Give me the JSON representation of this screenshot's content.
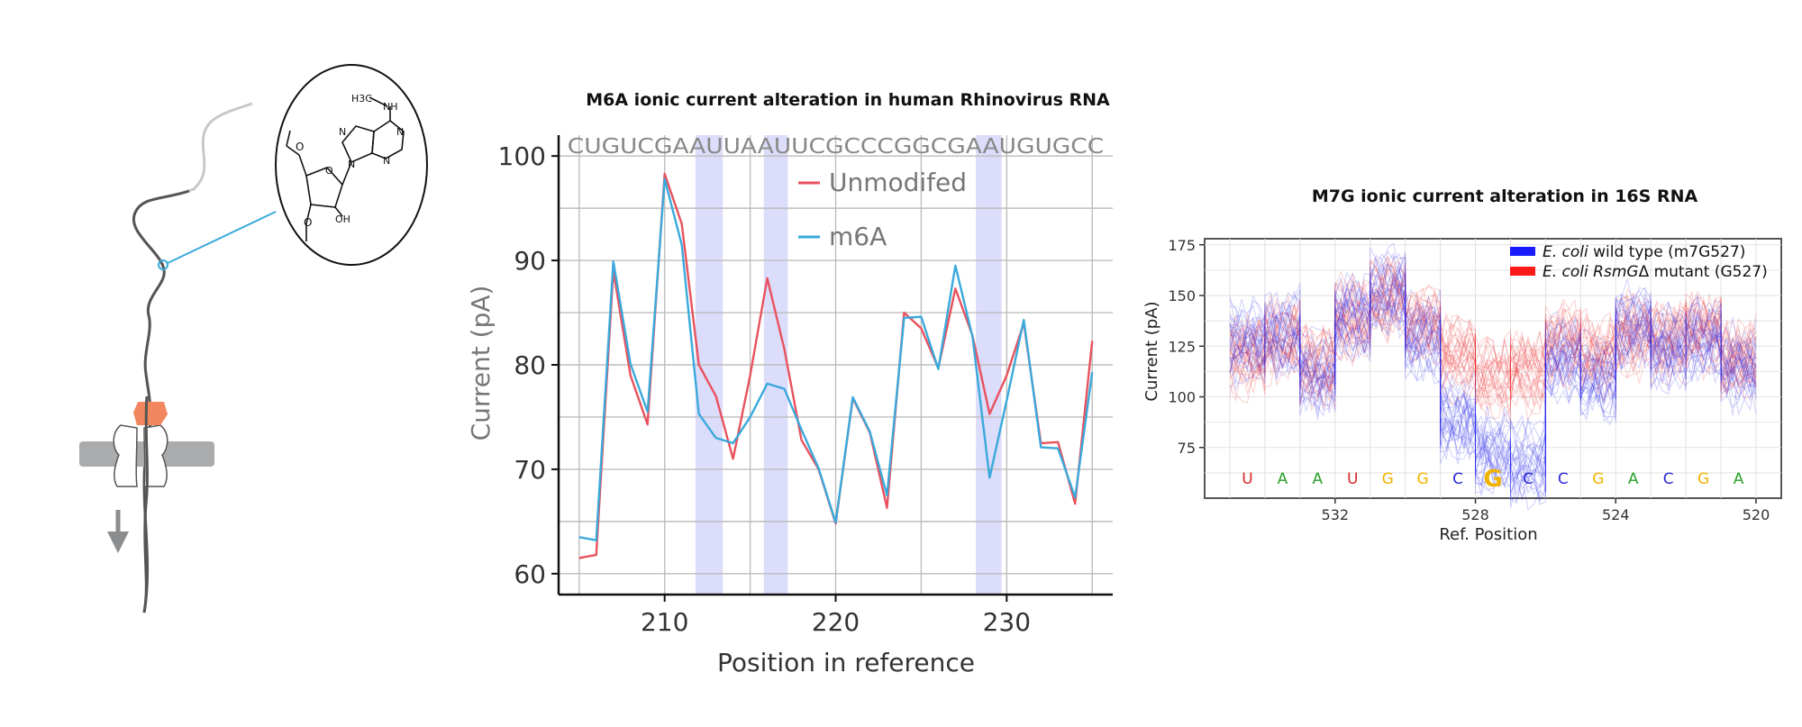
{
  "illustration": {
    "icons": [
      "nanopore-membrane-icon",
      "motor-protein-icon",
      "rna-strand-icon",
      "translocation-arrow-icon",
      "m6a-nucleoside-structure-icon"
    ],
    "molecule_labels": {
      "methyl": "H3C",
      "amine": "NH",
      "hydroxyl": "OH"
    }
  },
  "chart_data": [
    {
      "type": "line",
      "title": "M6A ionic current alteration in human Rhinovirus RNA",
      "xlabel": "Position in reference",
      "ylabel": "Current (pA)",
      "xlim": [
        203.8,
        236.2
      ],
      "ylim": [
        58,
        102
      ],
      "xticks": [
        210,
        220,
        230
      ],
      "yticks": [
        60,
        70,
        80,
        90,
        100
      ],
      "grid": true,
      "legend_placement": "top-center",
      "sequence": "CUGUCGAAUUAAUUCGCCCGGCGAAUGUGCC",
      "highlight_spans": [
        [
          211.8,
          213.4
        ],
        [
          215.8,
          217.2
        ],
        [
          228.2,
          229.7
        ]
      ],
      "series": [
        {
          "name": "Unmodifed",
          "color": "#e8525e",
          "x": [
            205,
            206,
            207,
            208,
            209,
            210,
            211,
            212,
            213,
            214,
            215,
            216,
            217,
            218,
            219,
            220,
            221,
            222,
            223,
            224,
            225,
            226,
            227,
            228,
            229,
            230,
            231,
            232,
            233,
            234,
            235
          ],
          "y": [
            61.5,
            61.8,
            89.0,
            79.0,
            74.3,
            98.3,
            93.5,
            80.0,
            77.0,
            71.0,
            79.0,
            88.3,
            81.5,
            72.8,
            70.0,
            64.8,
            76.8,
            73.5,
            66.3,
            85.0,
            83.5,
            79.7,
            87.3,
            82.8,
            75.3,
            79.0,
            84.0,
            72.5,
            72.6,
            66.7,
            82.3
          ]
        },
        {
          "name": "m6A",
          "color": "#3aa9db",
          "x": [
            205,
            206,
            207,
            208,
            209,
            210,
            211,
            212,
            213,
            214,
            215,
            216,
            217,
            218,
            219,
            220,
            221,
            222,
            223,
            224,
            225,
            226,
            227,
            228,
            229,
            230,
            231,
            232,
            233,
            234,
            235
          ],
          "y": [
            63.5,
            63.2,
            89.9,
            80.1,
            75.5,
            97.8,
            91.5,
            75.3,
            73.0,
            72.5,
            75.0,
            78.2,
            77.7,
            73.8,
            70.1,
            64.9,
            76.9,
            73.6,
            67.5,
            84.5,
            84.6,
            79.6,
            89.5,
            82.7,
            69.2,
            76.6,
            84.3,
            72.1,
            72.0,
            67.3,
            79.3
          ]
        }
      ]
    },
    {
      "type": "line",
      "title": "M7G ionic current alteration in 16S RNA",
      "xlabel": "Ref. Position",
      "ylabel": "Current (pA)",
      "ylim": [
        50,
        178
      ],
      "yticks": [
        75,
        100,
        125,
        150,
        175
      ],
      "xticks": [
        532,
        528,
        524,
        520
      ],
      "x_reversed": true,
      "grid": true,
      "legend_placement": "top-right",
      "legend": [
        {
          "prefix": "E. coli",
          "suffix": " wild type (m7G527)",
          "color": "#1a1aff"
        },
        {
          "prefix": "E. coli RsmG",
          "suffix": "Δ mutant (G527)",
          "color": "#ff1a1a"
        }
      ],
      "positions": [
        534,
        533,
        532,
        531,
        530,
        529,
        528,
        527,
        526,
        525,
        524,
        523,
        522,
        521,
        520
      ],
      "bases": [
        {
          "base": "U",
          "color": "#d62728"
        },
        {
          "base": "A",
          "color": "#2ca02c"
        },
        {
          "base": "A",
          "color": "#2ca02c"
        },
        {
          "base": "U",
          "color": "#d62728"
        },
        {
          "base": "G",
          "color": "#f0b400"
        },
        {
          "base": "G",
          "color": "#f0b400"
        },
        {
          "base": "C",
          "color": "#2b2bd6"
        },
        {
          "base": "G",
          "color": "#f0b400"
        },
        {
          "base": "C",
          "color": "#2b2bd6"
        },
        {
          "base": "C",
          "color": "#2b2bd6"
        },
        {
          "base": "G",
          "color": "#f0b400"
        },
        {
          "base": "A",
          "color": "#2ca02c"
        },
        {
          "base": "C",
          "color": "#2b2bd6"
        },
        {
          "base": "G",
          "color": "#f0b400"
        },
        {
          "base": "A",
          "color": "#2ca02c"
        }
      ],
      "highlight_base_index": 7,
      "series": [
        {
          "name": "E. coli wild type (m7G527)",
          "color": "#2a2aee",
          "mean_levels": [
            127,
            132,
            112,
            140,
            152,
            130,
            90,
            72,
            68,
            120,
            110,
            135,
            125,
            130,
            115
          ]
        },
        {
          "name": "E. coli RsmGΔ mutant (G527)",
          "color": "#ee2a2a",
          "mean_levels": [
            120,
            128,
            115,
            138,
            148,
            135,
            120,
            110,
            112,
            125,
            120,
            130,
            128,
            132,
            118
          ]
        }
      ]
    }
  ]
}
